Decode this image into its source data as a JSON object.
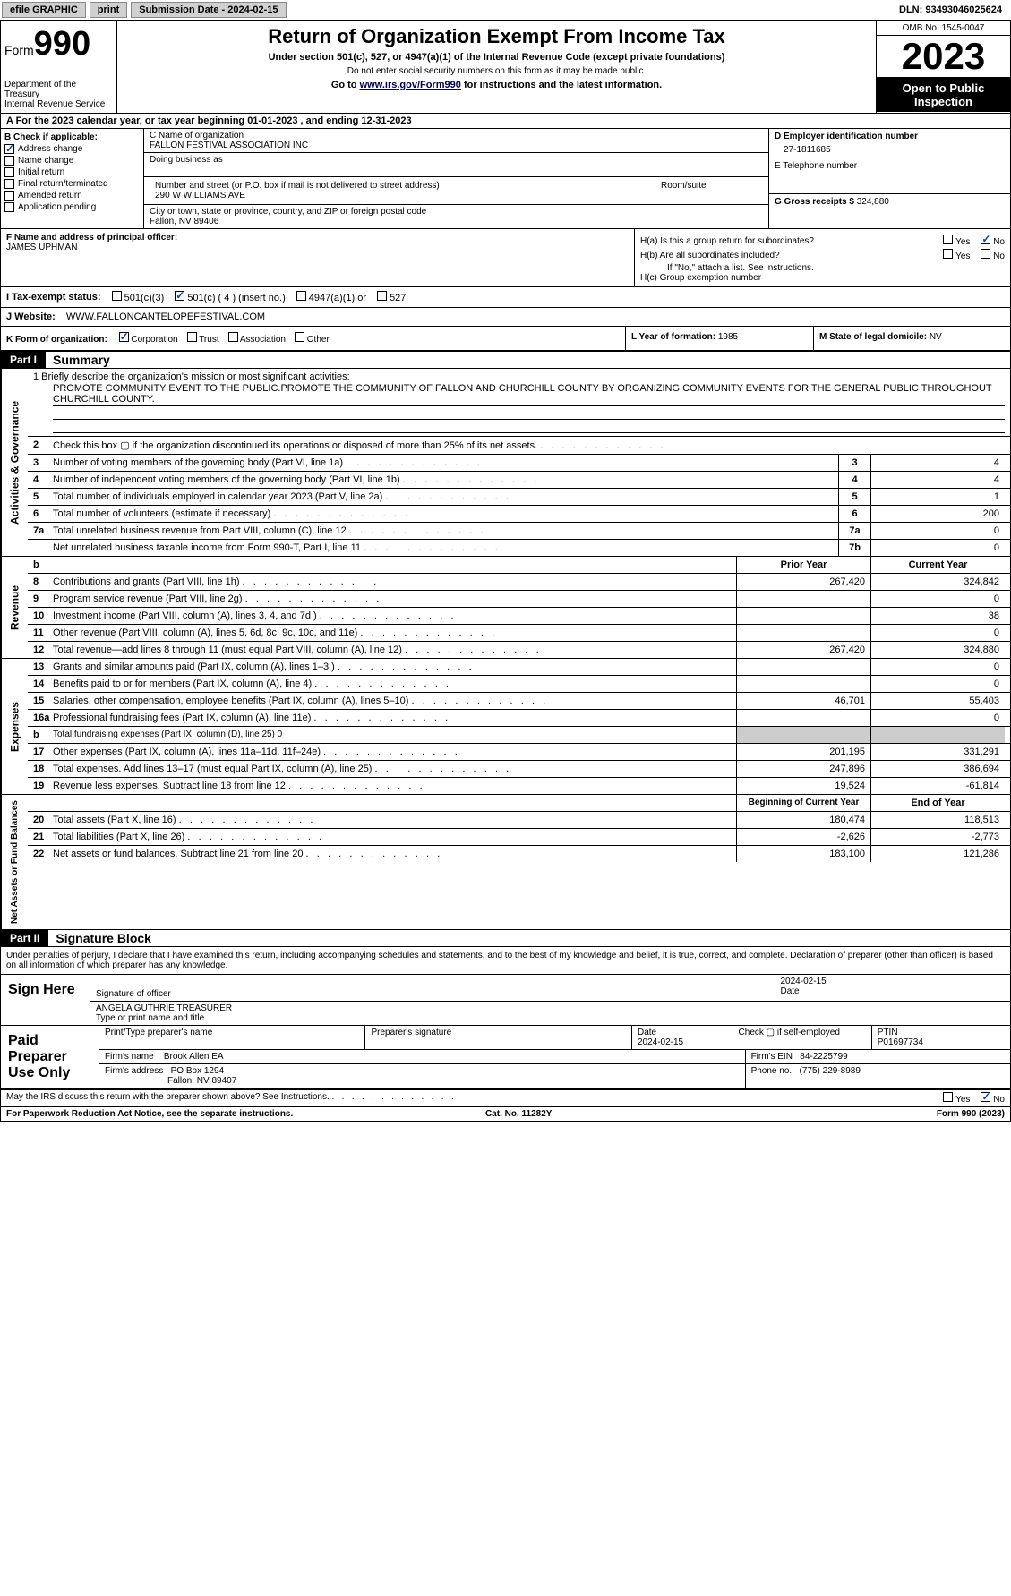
{
  "topbar": {
    "efile": "efile GRAPHIC",
    "print": "print",
    "submission": "Submission Date - 2024-02-15",
    "dln": "DLN: 93493046025624"
  },
  "header": {
    "form_word": "Form",
    "form_num": "990",
    "dept": "Department of the Treasury",
    "irs": "Internal Revenue Service",
    "title": "Return of Organization Exempt From Income Tax",
    "sub": "Under section 501(c), 527, or 4947(a)(1) of the Internal Revenue Code (except private foundations)",
    "ssn": "Do not enter social security numbers on this form as it may be made public.",
    "goto": "Go to www.irs.gov/Form990 for instructions and the latest information.",
    "goto_url": "www.irs.gov/Form990",
    "omb": "OMB No. 1545-0047",
    "year": "2023",
    "open": "Open to Public Inspection"
  },
  "rowA": {
    "text": "A  For the 2023 calendar year, or tax year beginning 01-01-2023    , and ending 12-31-2023"
  },
  "colB": {
    "label": "B Check if applicable:",
    "items": [
      {
        "label": "Address change",
        "checked": true
      },
      {
        "label": "Name change",
        "checked": false
      },
      {
        "label": "Initial return",
        "checked": false
      },
      {
        "label": "Final return/terminated",
        "checked": false
      },
      {
        "label": "Amended return",
        "checked": false
      },
      {
        "label": "Application pending",
        "checked": false
      }
    ]
  },
  "colC": {
    "name_label": "C Name of organization",
    "name": "FALLON FESTIVAL ASSOCIATION INC",
    "dba_label": "Doing business as",
    "street_label": "Number and street (or P.O. box if mail is not delivered to street address)",
    "street": "290 W WILLIAMS AVE",
    "suite_label": "Room/suite",
    "city_label": "City or town, state or province, country, and ZIP or foreign postal code",
    "city": "Fallon, NV  89406"
  },
  "colD": {
    "ein_label": "D Employer identification number",
    "ein": "27-1811685",
    "phone_label": "E Telephone number",
    "gross_label": "G Gross receipts $",
    "gross": "324,880"
  },
  "F": {
    "label": "F  Name and address of principal officer:",
    "name": "JAMES UPHMAN"
  },
  "H": {
    "a_label": "H(a)  Is this a group return for subordinates?",
    "a_yes": "Yes",
    "a_no": "No",
    "a_checked": "No",
    "b_label": "H(b)  Are all subordinates included?",
    "b_yes": "Yes",
    "b_no": "No",
    "b_note": "If \"No,\" attach a list. See instructions.",
    "c_label": "H(c)  Group exemption number"
  },
  "I": {
    "label": "I   Tax-exempt status:",
    "o1": "501(c)(3)",
    "o2": "501(c) ( 4 ) (insert no.)",
    "o3": "4947(a)(1) or",
    "o4": "527",
    "checked": "o2"
  },
  "J": {
    "label": "J   Website:",
    "url": "WWW.FALLONCANTELOPEFESTIVAL.COM"
  },
  "K": {
    "label": "K Form of organization:",
    "opts": [
      "Corporation",
      "Trust",
      "Association",
      "Other"
    ],
    "checked": 0
  },
  "L": {
    "label": "L Year of formation:",
    "val": "1985"
  },
  "M": {
    "label": "M State of legal domicile:",
    "val": "NV"
  },
  "partI": {
    "hdr": "Part I",
    "title": "Summary"
  },
  "mission": {
    "label": "1   Briefly describe the organization's mission or most significant activities:",
    "text": "PROMOTE COMMUNITY EVENT TO THE PUBLIC.PROMOTE THE COMMUNITY OF FALLON AND CHURCHILL COUNTY BY ORGANIZING COMMUNITY EVENTS FOR THE GENERAL PUBLIC THROUGHOUT CHURCHILL COUNTY."
  },
  "gov_vlabel": "Activities & Governance",
  "gov_lines": [
    {
      "n": "2",
      "t": "Check this box ▢ if the organization discontinued its operations or disposed of more than 25% of its net assets."
    },
    {
      "n": "3",
      "t": "Number of voting members of the governing body (Part VI, line 1a)",
      "nc": "3",
      "v": "4"
    },
    {
      "n": "4",
      "t": "Number of independent voting members of the governing body (Part VI, line 1b)",
      "nc": "4",
      "v": "4"
    },
    {
      "n": "5",
      "t": "Total number of individuals employed in calendar year 2023 (Part V, line 2a)",
      "nc": "5",
      "v": "1"
    },
    {
      "n": "6",
      "t": "Total number of volunteers (estimate if necessary)",
      "nc": "6",
      "v": "200"
    },
    {
      "n": "7a",
      "t": "Total unrelated business revenue from Part VIII, column (C), line 12",
      "nc": "7a",
      "v": "0"
    },
    {
      "n": "",
      "t": "Net unrelated business taxable income from Form 990-T, Part I, line 11",
      "nc": "7b",
      "v": "0"
    }
  ],
  "rev_vlabel": "Revenue",
  "rev_hdr": {
    "b": "b",
    "py": "Prior Year",
    "cy": "Current Year"
  },
  "rev_lines": [
    {
      "n": "8",
      "t": "Contributions and grants (Part VIII, line 1h)",
      "py": "267,420",
      "cy": "324,842"
    },
    {
      "n": "9",
      "t": "Program service revenue (Part VIII, line 2g)",
      "py": "",
      "cy": "0"
    },
    {
      "n": "10",
      "t": "Investment income (Part VIII, column (A), lines 3, 4, and 7d )",
      "py": "",
      "cy": "38"
    },
    {
      "n": "11",
      "t": "Other revenue (Part VIII, column (A), lines 5, 6d, 8c, 9c, 10c, and 11e)",
      "py": "",
      "cy": "0"
    },
    {
      "n": "12",
      "t": "Total revenue—add lines 8 through 11 (must equal Part VIII, column (A), line 12)",
      "py": "267,420",
      "cy": "324,880"
    }
  ],
  "exp_vlabel": "Expenses",
  "exp_lines": [
    {
      "n": "13",
      "t": "Grants and similar amounts paid (Part IX, column (A), lines 1–3 )",
      "py": "",
      "cy": "0"
    },
    {
      "n": "14",
      "t": "Benefits paid to or for members (Part IX, column (A), line 4)",
      "py": "",
      "cy": "0"
    },
    {
      "n": "15",
      "t": "Salaries, other compensation, employee benefits (Part IX, column (A), lines 5–10)",
      "py": "46,701",
      "cy": "55,403"
    },
    {
      "n": "16a",
      "t": "Professional fundraising fees (Part IX, column (A), line 11e)",
      "py": "",
      "cy": "0"
    },
    {
      "n": "b",
      "t": "Total fundraising expenses (Part IX, column (D), line 25) 0",
      "gray": true
    },
    {
      "n": "17",
      "t": "Other expenses (Part IX, column (A), lines 11a–11d, 11f–24e)",
      "py": "201,195",
      "cy": "331,291"
    },
    {
      "n": "18",
      "t": "Total expenses. Add lines 13–17 (must equal Part IX, column (A), line 25)",
      "py": "247,896",
      "cy": "386,694"
    },
    {
      "n": "19",
      "t": "Revenue less expenses. Subtract line 18 from line 12",
      "py": "19,524",
      "cy": "-61,814"
    }
  ],
  "na_vlabel": "Net Assets or Fund Balances",
  "na_hdr": {
    "py": "Beginning of Current Year",
    "cy": "End of Year"
  },
  "na_lines": [
    {
      "n": "20",
      "t": "Total assets (Part X, line 16)",
      "py": "180,474",
      "cy": "118,513"
    },
    {
      "n": "21",
      "t": "Total liabilities (Part X, line 26)",
      "py": "-2,626",
      "cy": "-2,773"
    },
    {
      "n": "22",
      "t": "Net assets or fund balances. Subtract line 21 from line 20",
      "py": "183,100",
      "cy": "121,286"
    }
  ],
  "partII": {
    "hdr": "Part II",
    "title": "Signature Block"
  },
  "sig_note": "Under penalties of perjury, I declare that I have examined this return, including accompanying schedules and statements, and to the best of my knowledge and belief, it is true, correct, and complete. Declaration of preparer (other than officer) is based on all information of which preparer has any knowledge.",
  "sign": {
    "here": "Sign Here",
    "sig_label": "Signature of officer",
    "name": "ANGELA GUTHRIE  TREASURER",
    "name_label": "Type or print name and title",
    "date_label": "Date",
    "date": "2024-02-15"
  },
  "paid": {
    "label": "Paid Preparer Use Only",
    "prep_name_label": "Print/Type preparer's name",
    "prep_sig_label": "Preparer's signature",
    "date_label": "Date",
    "date": "2024-02-15",
    "check_label": "Check ▢ if self-employed",
    "ptin_label": "PTIN",
    "ptin": "P01697734",
    "firm_name_label": "Firm's name",
    "firm_name": "Brook Allen EA",
    "firm_ein_label": "Firm's EIN",
    "firm_ein": "84-2225799",
    "firm_addr_label": "Firm's address",
    "firm_addr1": "PO Box 1294",
    "firm_addr2": "Fallon, NV  89407",
    "phone_label": "Phone no.",
    "phone": "(775) 229-8989"
  },
  "discuss": {
    "text": "May the IRS discuss this return with the preparer shown above? See Instructions.",
    "yes": "Yes",
    "no": "No",
    "checked": "No"
  },
  "footer": {
    "l": "For Paperwork Reduction Act Notice, see the separate instructions.",
    "m": "Cat. No. 11282Y",
    "r": "Form 990 (2023)"
  },
  "colors": {
    "check_blue": "#0047ab",
    "gray_btn": "#d0d0d0",
    "gray_cell": "#cccccc"
  }
}
